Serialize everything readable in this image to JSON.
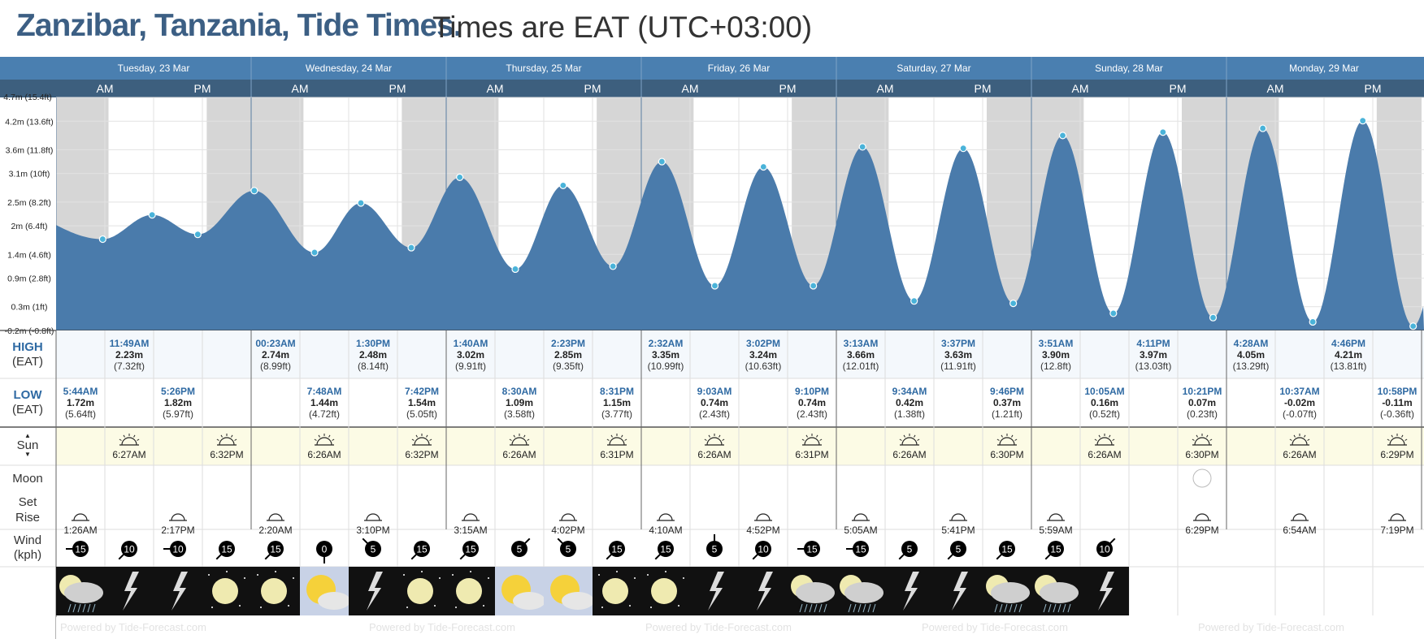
{
  "title": {
    "place": "Zanzibar, Tanzania, Tide Times.",
    "tz": "Times are EAT (UTC+03:00)"
  },
  "days": [
    "Tuesday, 23 Mar",
    "Wednesday, 24 Mar",
    "Thursday, 25 Mar",
    "Friday, 26 Mar",
    "Saturday, 27 Mar",
    "Sunday, 28 Mar",
    "Monday, 29 Mar"
  ],
  "ampm": [
    "AM",
    "PM"
  ],
  "yticks": [
    {
      "v": 4.7,
      "l": "4.7m (15.4ft)"
    },
    {
      "v": 4.2,
      "l": "4.2m (13.6ft)"
    },
    {
      "v": 3.6,
      "l": "3.6m (11.8ft)"
    },
    {
      "v": 3.1,
      "l": "3.1m (10ft)"
    },
    {
      "v": 2.5,
      "l": "2.5m (8.2ft)"
    },
    {
      "v": 2.0,
      "l": "2m (6.4ft)"
    },
    {
      "v": 1.4,
      "l": "1.4m (4.6ft)"
    },
    {
      "v": 0.9,
      "l": "0.9m (2.8ft)"
    },
    {
      "v": 0.3,
      "l": "0.3m (1ft)"
    },
    {
      "v": -0.2,
      "l": "-0.2m (-0.8ft)"
    }
  ],
  "labels": {
    "high": "HIGH",
    "low": "LOW",
    "eat": "(EAT)",
    "sun": "Sun",
    "moon": "Moon",
    "set": "Set",
    "rise": "Rise",
    "wind": "Wind",
    "kph": "(kph)",
    "powered": "Powered by Tide-Forecast.com"
  },
  "chart_data": {
    "type": "area",
    "ylabel": "",
    "ylim": [
      -0.2,
      4.7
    ],
    "unit": "m",
    "x_start": "Tue 23 Mar 00:00",
    "x_end": "Mon 29 Mar 24:00",
    "points": [
      {
        "t": "Tue 05:44",
        "h": 1.72,
        "kind": "low"
      },
      {
        "t": "Tue 11:49",
        "h": 2.23,
        "kind": "high"
      },
      {
        "t": "Tue 17:26",
        "h": 1.82,
        "kind": "low"
      },
      {
        "t": "Wed 00:23",
        "h": 2.74,
        "kind": "high"
      },
      {
        "t": "Wed 07:48",
        "h": 1.44,
        "kind": "low"
      },
      {
        "t": "Wed 13:30",
        "h": 2.48,
        "kind": "high"
      },
      {
        "t": "Wed 19:42",
        "h": 1.54,
        "kind": "low"
      },
      {
        "t": "Thu 01:40",
        "h": 3.02,
        "kind": "high"
      },
      {
        "t": "Thu 08:30",
        "h": 1.09,
        "kind": "low"
      },
      {
        "t": "Thu 14:23",
        "h": 2.85,
        "kind": "high"
      },
      {
        "t": "Thu 20:31",
        "h": 1.15,
        "kind": "low"
      },
      {
        "t": "Fri 02:32",
        "h": 3.35,
        "kind": "high"
      },
      {
        "t": "Fri 09:03",
        "h": 0.74,
        "kind": "low"
      },
      {
        "t": "Fri 15:02",
        "h": 3.24,
        "kind": "high"
      },
      {
        "t": "Fri 21:10",
        "h": 0.74,
        "kind": "low"
      },
      {
        "t": "Sat 03:13",
        "h": 3.66,
        "kind": "high"
      },
      {
        "t": "Sat 09:34",
        "h": 0.42,
        "kind": "low"
      },
      {
        "t": "Sat 15:37",
        "h": 3.63,
        "kind": "high"
      },
      {
        "t": "Sat 21:46",
        "h": 0.37,
        "kind": "low"
      },
      {
        "t": "Sun 03:51",
        "h": 3.9,
        "kind": "high"
      },
      {
        "t": "Sun 10:05",
        "h": 0.16,
        "kind": "low"
      },
      {
        "t": "Sun 16:11",
        "h": 3.97,
        "kind": "high"
      },
      {
        "t": "Sun 22:21",
        "h": 0.07,
        "kind": "low"
      },
      {
        "t": "Mon 04:28",
        "h": 4.05,
        "kind": "high"
      },
      {
        "t": "Mon 10:37",
        "h": -0.02,
        "kind": "low"
      },
      {
        "t": "Mon 16:46",
        "h": 4.21,
        "kind": "high"
      },
      {
        "t": "Mon 22:58",
        "h": -0.11,
        "kind": "low"
      }
    ]
  },
  "highs": [
    {
      "time": "11:49AM",
      "m": "2.23m",
      "ft": "(7.32ft)"
    },
    {
      "time": "00:23AM",
      "m": "2.74m",
      "ft": "(8.99ft)"
    },
    {
      "time": "1:30PM",
      "m": "2.48m",
      "ft": "(8.14ft)"
    },
    {
      "time": "1:40AM",
      "m": "3.02m",
      "ft": "(9.91ft)"
    },
    {
      "time": "2:23PM",
      "m": "2.85m",
      "ft": "(9.35ft)"
    },
    {
      "time": "2:32AM",
      "m": "3.35m",
      "ft": "(10.99ft)"
    },
    {
      "time": "3:02PM",
      "m": "3.24m",
      "ft": "(10.63ft)"
    },
    {
      "time": "3:13AM",
      "m": "3.66m",
      "ft": "(12.01ft)"
    },
    {
      "time": "3:37PM",
      "m": "3.63m",
      "ft": "(11.91ft)"
    },
    {
      "time": "3:51AM",
      "m": "3.90m",
      "ft": "(12.8ft)"
    },
    {
      "time": "4:11PM",
      "m": "3.97m",
      "ft": "(13.03ft)"
    },
    {
      "time": "4:28AM",
      "m": "4.05m",
      "ft": "(13.29ft)"
    },
    {
      "time": "4:46PM",
      "m": "4.21m",
      "ft": "(13.81ft)"
    }
  ],
  "lows": [
    {
      "time": "5:44AM",
      "m": "1.72m",
      "ft": "(5.64ft)"
    },
    {
      "time": "5:26PM",
      "m": "1.82m",
      "ft": "(5.97ft)"
    },
    {
      "time": "7:48AM",
      "m": "1.44m",
      "ft": "(4.72ft)"
    },
    {
      "time": "7:42PM",
      "m": "1.54m",
      "ft": "(5.05ft)"
    },
    {
      "time": "8:30AM",
      "m": "1.09m",
      "ft": "(3.58ft)"
    },
    {
      "time": "8:31PM",
      "m": "1.15m",
      "ft": "(3.77ft)"
    },
    {
      "time": "9:03AM",
      "m": "0.74m",
      "ft": "(2.43ft)"
    },
    {
      "time": "9:10PM",
      "m": "0.74m",
      "ft": "(2.43ft)"
    },
    {
      "time": "9:34AM",
      "m": "0.42m",
      "ft": "(1.38ft)"
    },
    {
      "time": "9:46PM",
      "m": "0.37m",
      "ft": "(1.21ft)"
    },
    {
      "time": "10:05AM",
      "m": "0.16m",
      "ft": "(0.52ft)"
    },
    {
      "time": "10:21PM",
      "m": "0.07m",
      "ft": "(0.23ft)"
    },
    {
      "time": "10:37AM",
      "m": "-0.02m",
      "ft": "(-0.07ft)"
    },
    {
      "time": "10:58PM",
      "m": "-0.11m",
      "ft": "(-0.36ft)"
    }
  ],
  "sun": [
    {
      "rise": "6:27AM",
      "set": "6:32PM"
    },
    {
      "rise": "6:26AM",
      "set": "6:32PM"
    },
    {
      "rise": "6:26AM",
      "set": "6:31PM"
    },
    {
      "rise": "6:26AM",
      "set": "6:31PM"
    },
    {
      "rise": "6:26AM",
      "set": "6:30PM"
    },
    {
      "rise": "6:26AM",
      "set": "6:30PM"
    },
    {
      "rise": "6:26AM",
      "set": "6:29PM"
    }
  ],
  "moon": [
    {
      "rise": "1:26AM",
      "set": "2:17PM"
    },
    {
      "rise": "2:20AM",
      "set": "3:10PM"
    },
    {
      "rise": "3:15AM",
      "set": "4:02PM"
    },
    {
      "rise": "4:10AM",
      "set": "4:52PM"
    },
    {
      "rise": "5:05AM",
      "set": "5:41PM"
    },
    {
      "rise": "5:59AM",
      "set": "6:29PM"
    },
    {
      "rise": "6:54AM",
      "set": "7:19PM"
    }
  ],
  "wind": [
    {
      "v": "15",
      "dir": "W"
    },
    {
      "v": "10",
      "dir": "SW"
    },
    {
      "v": "10",
      "dir": "W"
    },
    {
      "v": "15",
      "dir": "SW"
    },
    {
      "v": "15",
      "dir": "SW"
    },
    {
      "v": "0",
      "dir": "S"
    },
    {
      "v": "5",
      "dir": "NW"
    },
    {
      "v": "15",
      "dir": "SW"
    },
    {
      "v": "15",
      "dir": "SW"
    },
    {
      "v": "5",
      "dir": "NE"
    },
    {
      "v": "5",
      "dir": "NW"
    },
    {
      "v": "15",
      "dir": "SW"
    },
    {
      "v": "15",
      "dir": "SW"
    },
    {
      "v": "5",
      "dir": "N"
    },
    {
      "v": "10",
      "dir": "SW"
    },
    {
      "v": "15",
      "dir": "W"
    },
    {
      "v": "15",
      "dir": "W"
    },
    {
      "v": "5",
      "dir": "SW"
    },
    {
      "v": "5",
      "dir": "SW"
    },
    {
      "v": "15",
      "dir": "SW"
    },
    {
      "v": "15",
      "dir": "SW"
    },
    {
      "v": "10",
      "dir": "NE"
    }
  ],
  "weather": [
    "cloud-rain-night",
    "lightning",
    "lightning",
    "moon-night",
    "moon-night",
    "sun-cloud",
    "lightning",
    "moon-night",
    "moon-night",
    "sun-cloud",
    "sun-cloud",
    "moon-night",
    "moon-night",
    "lightning",
    "lightning",
    "cloud-rain-night",
    "cloud-rain-night",
    "lightning",
    "lightning",
    "cloud-rain-night",
    "cloud-rain-night",
    "lightning"
  ],
  "colors": {
    "header": "#4a7fb0",
    "subheader": "#3d5f7e",
    "tide": "#4a7bab",
    "night": "#d6d6d6",
    "accent": "#2f6aa3",
    "sunrow": "#fcfbe5"
  }
}
